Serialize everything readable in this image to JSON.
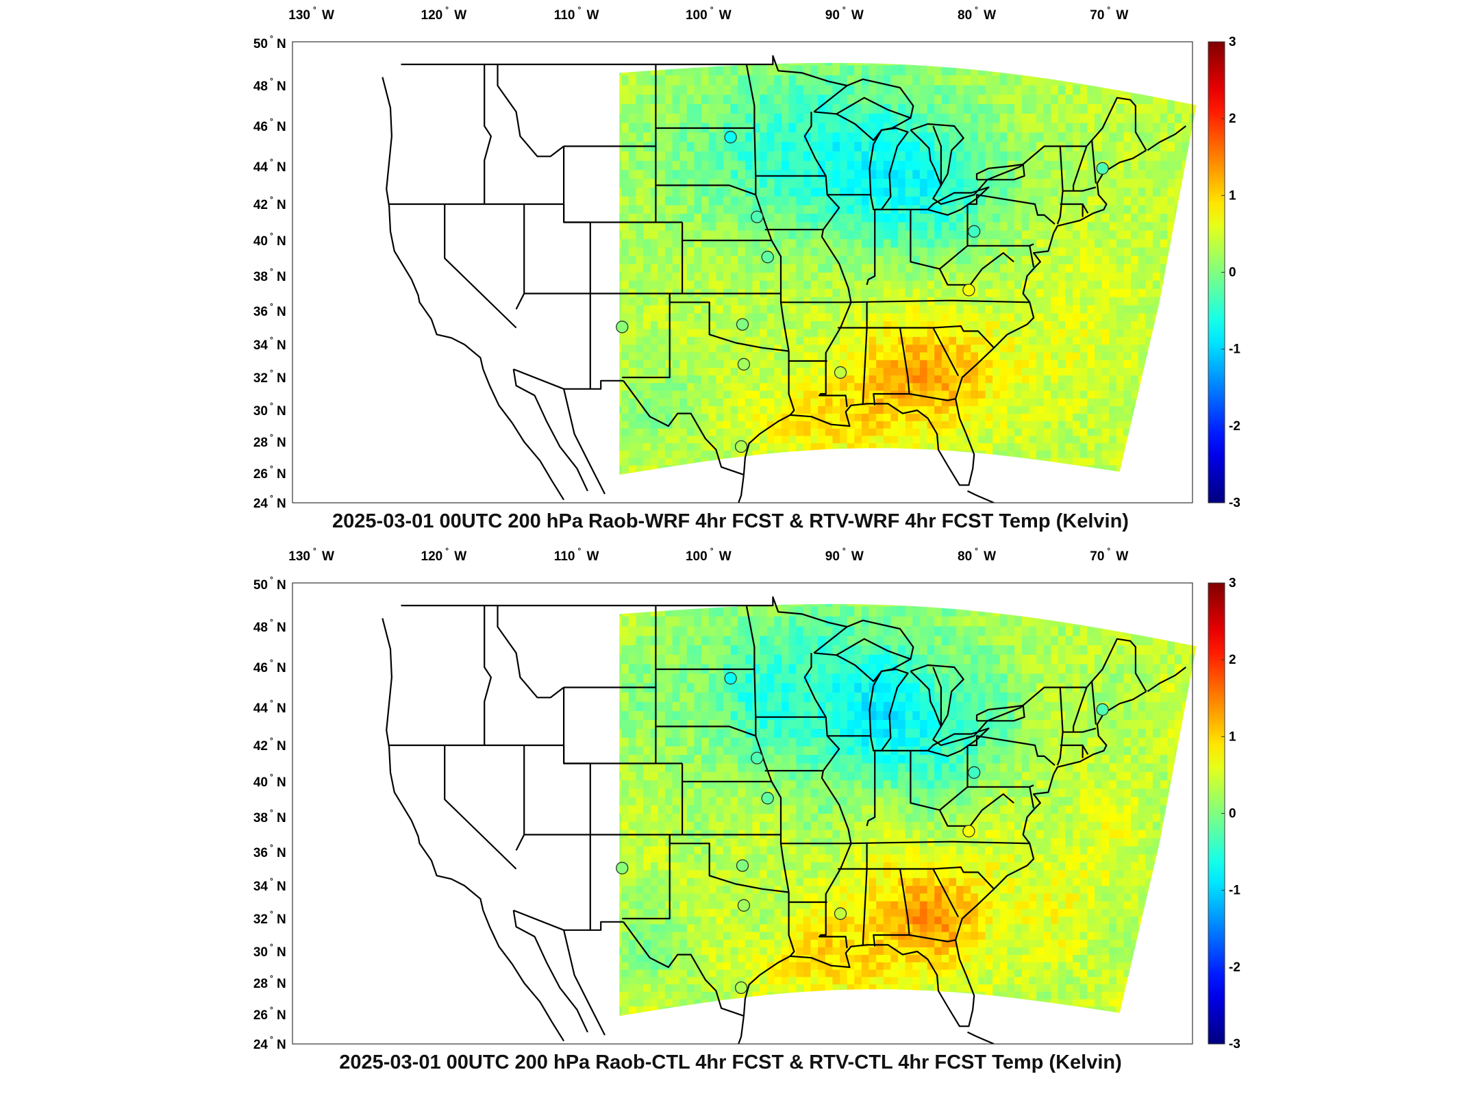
{
  "panels": [
    {
      "title": "2025-03-01 00UTC 200 hPa Raob-WRF 4hr FCST & RTV-WRF 4hr FCST Temp (Kelvin)",
      "stations": [
        {
          "lon": -106.6,
          "lat": 35.05,
          "value": 0.05
        },
        {
          "lon": -98.4,
          "lat": 45.45,
          "value": -0.7
        },
        {
          "lon": -96.4,
          "lat": 41.3,
          "value": -0.3
        },
        {
          "lon": -95.6,
          "lat": 39.07,
          "value": -0.2
        },
        {
          "lon": -97.5,
          "lat": 35.2,
          "value": 0.0
        },
        {
          "lon": -97.4,
          "lat": 32.8,
          "value": 0.2
        },
        {
          "lon": -97.6,
          "lat": 27.7,
          "value": 0.3
        },
        {
          "lon": -90.1,
          "lat": 32.3,
          "value": 0.4
        },
        {
          "lon": -80.0,
          "lat": 40.5,
          "value": -0.4
        },
        {
          "lon": -80.4,
          "lat": 37.2,
          "value": 0.7
        },
        {
          "lon": -70.3,
          "lat": 43.9,
          "value": -0.3
        }
      ]
    },
    {
      "title": "2025-03-01 00UTC 200 hPa Raob-CTL 4hr FCST & RTV-CTL 4hr FCST Temp (Kelvin)",
      "stations": [
        {
          "lon": -106.6,
          "lat": 35.05,
          "value": 0.05
        },
        {
          "lon": -98.4,
          "lat": 45.45,
          "value": -0.7
        },
        {
          "lon": -96.4,
          "lat": 41.3,
          "value": -0.3
        },
        {
          "lon": -95.6,
          "lat": 39.07,
          "value": -0.2
        },
        {
          "lon": -97.5,
          "lat": 35.2,
          "value": 0.0
        },
        {
          "lon": -97.4,
          "lat": 32.8,
          "value": 0.2
        },
        {
          "lon": -97.6,
          "lat": 27.7,
          "value": 0.3
        },
        {
          "lon": -90.1,
          "lat": 32.3,
          "value": 0.4
        },
        {
          "lon": -80.0,
          "lat": 40.5,
          "value": -0.4
        },
        {
          "lon": -80.4,
          "lat": 37.2,
          "value": 0.7
        },
        {
          "lon": -70.3,
          "lat": 43.9,
          "value": -0.3
        }
      ]
    }
  ],
  "map": {
    "lon_range": [
      -131.5,
      -63.5
    ],
    "lat_range": [
      24,
      50
    ],
    "lon_ticks": [
      {
        "value": -130,
        "label": "130",
        "hemi": "W"
      },
      {
        "value": -120,
        "label": "120",
        "hemi": "W"
      },
      {
        "value": -110,
        "label": "110",
        "hemi": "W"
      },
      {
        "value": -100,
        "label": "100",
        "hemi": "W"
      },
      {
        "value": -90,
        "label": "90",
        "hemi": "W"
      },
      {
        "value": -80,
        "label": "80",
        "hemi": "W"
      },
      {
        "value": -70,
        "label": "70",
        "hemi": "W"
      }
    ],
    "lat_ticks": [
      {
        "value": 50,
        "label": "50",
        "hemi": "N"
      },
      {
        "value": 48,
        "label": "48",
        "hemi": "N"
      },
      {
        "value": 46,
        "label": "46",
        "hemi": "N"
      },
      {
        "value": 44,
        "label": "44",
        "hemi": "N"
      },
      {
        "value": 42,
        "label": "42",
        "hemi": "N"
      },
      {
        "value": 40,
        "label": "40",
        "hemi": "N"
      },
      {
        "value": 38,
        "label": "38",
        "hemi": "N"
      },
      {
        "value": 36,
        "label": "36",
        "hemi": "N"
      },
      {
        "value": 34,
        "label": "34",
        "hemi": "N"
      },
      {
        "value": 32,
        "label": "32",
        "hemi": "N"
      },
      {
        "value": 30,
        "label": "30",
        "hemi": "N"
      },
      {
        "value": 28,
        "label": "28",
        "hemi": "N"
      },
      {
        "value": 26,
        "label": "26",
        "hemi": "N"
      },
      {
        "value": 24,
        "label": "24",
        "hemi": "N"
      }
    ],
    "degree_symbol": "°",
    "colormap": "jet",
    "colorbar": {
      "min": -3,
      "max": 3,
      "labels": [
        "3",
        "2",
        "1",
        "0",
        "-1",
        "-2",
        "-3"
      ]
    },
    "colors": {
      "yellow": "#f4ec33",
      "orange": "#f6b11b",
      "cyan": "#2fe0e8",
      "green": "#8fe860",
      "station_fill": "#66dd66"
    }
  }
}
